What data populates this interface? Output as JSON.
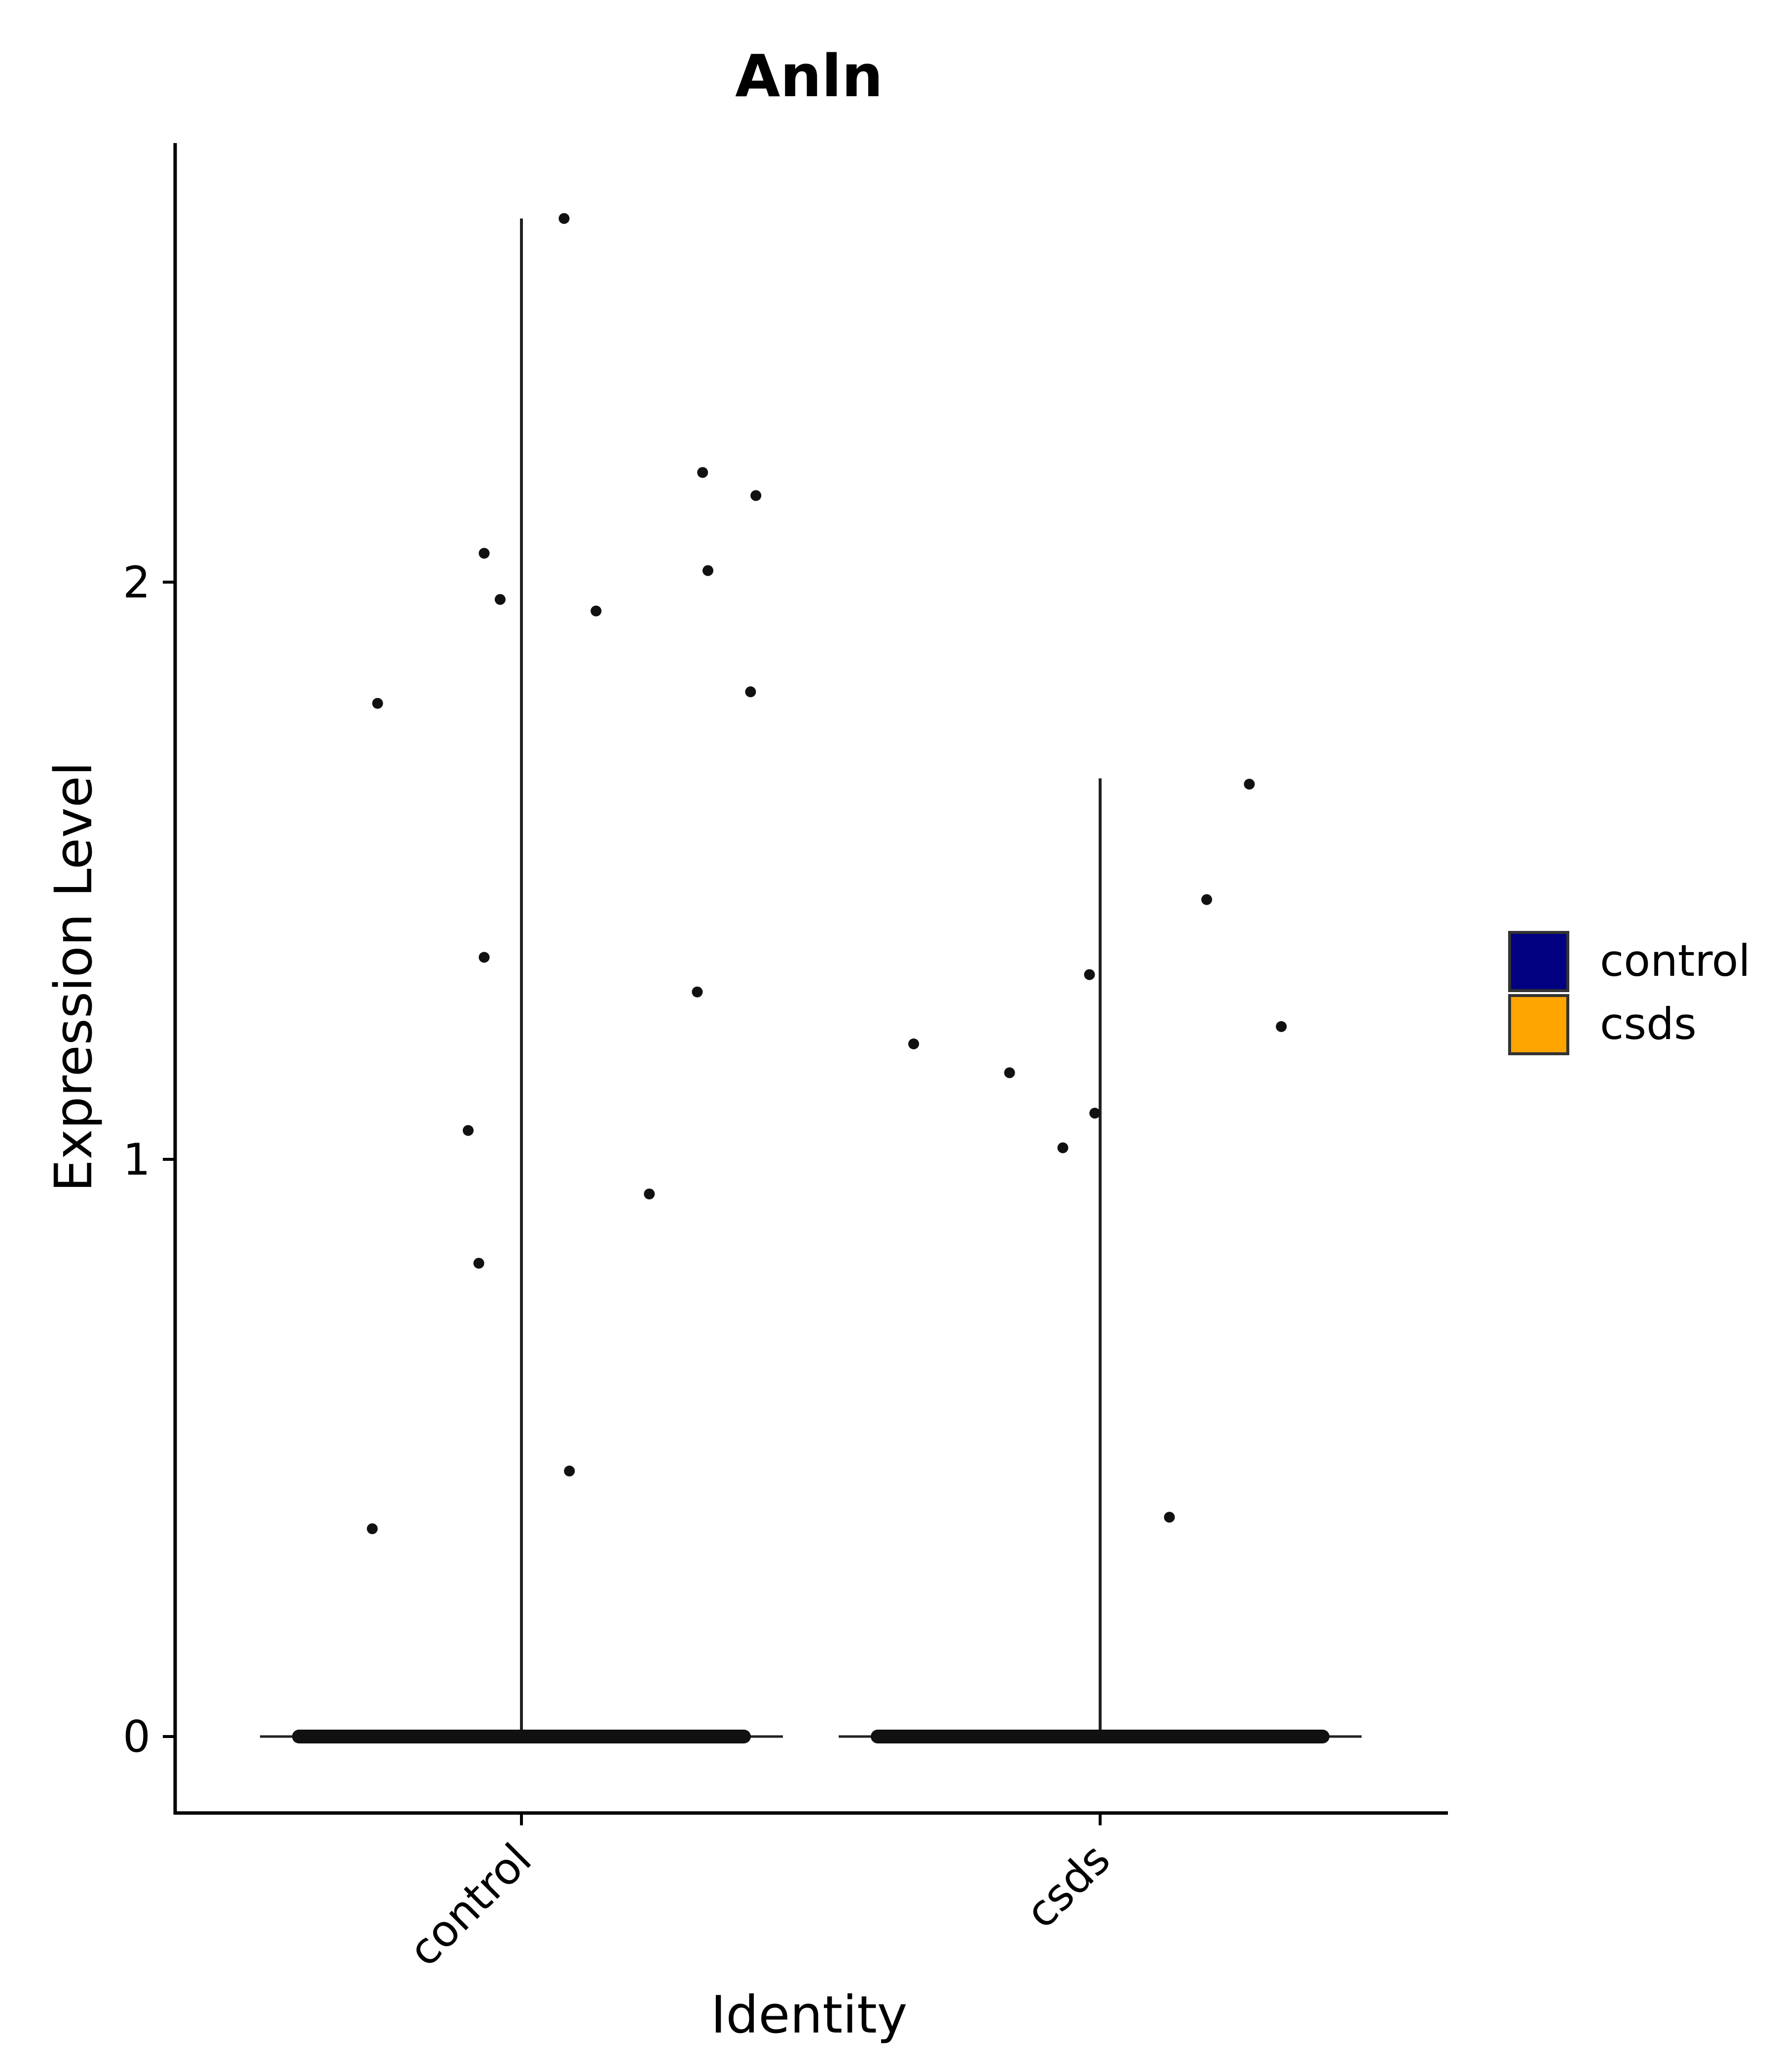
{
  "chart_data": {
    "type": "violin",
    "title": "Anln",
    "xlabel": "Identity",
    "ylabel": "Expression Level",
    "categories": [
      "control",
      "csds"
    ],
    "y_ticks": [
      0,
      1,
      2
    ],
    "ylim": [
      -0.13,
      2.75
    ],
    "grid": false,
    "legend_position": "right",
    "legend": [
      {
        "name": "control",
        "color": "#000080"
      },
      {
        "name": "csds",
        "color": "#FFA500"
      }
    ],
    "series": [
      {
        "name": "control",
        "color": "#000080",
        "max": 2.63,
        "zero_count_band": true,
        "points": [
          {
            "x_jitter": 0.08,
            "y": 2.63
          },
          {
            "x_jitter": 0.34,
            "y": 2.19
          },
          {
            "x_jitter": 0.44,
            "y": 2.15
          },
          {
            "x_jitter": -0.07,
            "y": 2.05
          },
          {
            "x_jitter": 0.35,
            "y": 2.02
          },
          {
            "x_jitter": -0.04,
            "y": 1.97
          },
          {
            "x_jitter": 0.14,
            "y": 1.95
          },
          {
            "x_jitter": -0.27,
            "y": 1.79
          },
          {
            "x_jitter": 0.43,
            "y": 1.81
          },
          {
            "x_jitter": -0.07,
            "y": 1.35
          },
          {
            "x_jitter": 0.33,
            "y": 1.29
          },
          {
            "x_jitter": -0.1,
            "y": 1.05
          },
          {
            "x_jitter": 0.24,
            "y": 0.94
          },
          {
            "x_jitter": -0.08,
            "y": 0.82
          },
          {
            "x_jitter": 0.09,
            "y": 0.46
          },
          {
            "x_jitter": -0.28,
            "y": 0.36
          }
        ]
      },
      {
        "name": "csds",
        "color": "#FFA500",
        "max": 1.66,
        "zero_count_band": true,
        "points": [
          {
            "x_jitter": 0.28,
            "y": 1.65
          },
          {
            "x_jitter": 0.2,
            "y": 1.45
          },
          {
            "x_jitter": -0.02,
            "y": 1.32
          },
          {
            "x_jitter": 0.34,
            "y": 1.23
          },
          {
            "x_jitter": -0.35,
            "y": 1.2
          },
          {
            "x_jitter": -0.17,
            "y": 1.15
          },
          {
            "x_jitter": -0.01,
            "y": 1.08
          },
          {
            "x_jitter": -0.07,
            "y": 1.02
          },
          {
            "x_jitter": 0.13,
            "y": 0.38
          }
        ]
      }
    ]
  }
}
